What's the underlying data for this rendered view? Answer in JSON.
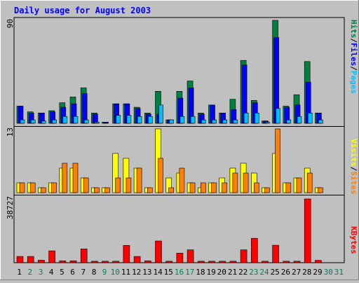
{
  "title": "Daily usage for August 2003",
  "colors": {
    "hits": "#008040",
    "files": "#0000ff",
    "pages": "#00c0ff",
    "visits": "#ffff00",
    "sites": "#ff8000",
    "kbytes": "#ff0000",
    "title": "#0000ff",
    "weekend_label": "#00805c",
    "weekday_label": "#000000",
    "background": "#c0c0c0"
  },
  "chart_data": [
    {
      "type": "bar",
      "name": "hits-files-pages",
      "ymax_label": "90",
      "ylim": [
        0,
        90
      ],
      "legend": [
        "Pages",
        "/",
        "Files",
        "/",
        "Hits"
      ],
      "categories": [
        "1",
        "2",
        "3",
        "4",
        "5",
        "6",
        "7",
        "8",
        "9",
        "10",
        "11",
        "12",
        "13",
        "14",
        "15",
        "16",
        "17",
        "18",
        "19",
        "20",
        "21",
        "22",
        "23",
        "24",
        "25",
        "26",
        "27",
        "28",
        "29",
        "30",
        "31"
      ],
      "series": [
        {
          "name": "Hits",
          "values": [
            15,
            10,
            9,
            11,
            18,
            23,
            31,
            9,
            1,
            17,
            17,
            14,
            9,
            28,
            3,
            28,
            37,
            9,
            16,
            9,
            21,
            55,
            20,
            2,
            90,
            15,
            25,
            54,
            9,
            0,
            0
          ]
        },
        {
          "name": "Files",
          "values": [
            15,
            9,
            9,
            10,
            14,
            17,
            26,
            8,
            1,
            17,
            17,
            13,
            8,
            8,
            3,
            22,
            31,
            8,
            16,
            9,
            12,
            51,
            18,
            2,
            75,
            14,
            16,
            36,
            9,
            0,
            0
          ]
        },
        {
          "name": "Pages",
          "values": [
            3,
            3,
            2,
            3,
            6,
            6,
            3,
            1,
            0,
            7,
            7,
            6,
            6,
            16,
            3,
            6,
            6,
            3,
            3,
            3,
            3,
            9,
            9,
            1,
            13,
            3,
            6,
            9,
            3,
            0,
            0
          ]
        }
      ]
    },
    {
      "type": "bar",
      "name": "visits-sites",
      "ymax_label": "13",
      "ylim": [
        0,
        13
      ],
      "legend": [
        "Sites",
        "/",
        "Visits"
      ],
      "categories": [
        "1",
        "2",
        "3",
        "4",
        "5",
        "6",
        "7",
        "8",
        "9",
        "10",
        "11",
        "12",
        "13",
        "14",
        "15",
        "16",
        "17",
        "18",
        "19",
        "20",
        "21",
        "22",
        "23",
        "24",
        "25",
        "26",
        "27",
        "28",
        "29",
        "30",
        "31"
      ],
      "series": [
        {
          "name": "Visits",
          "values": [
            2,
            2,
            1,
            2,
            5,
            5,
            3,
            1,
            1,
            8,
            7,
            5,
            1,
            13,
            3,
            4,
            2,
            1,
            2,
            3,
            5,
            6,
            4,
            1,
            8,
            2,
            3,
            5,
            1,
            0,
            0
          ]
        },
        {
          "name": "Sites",
          "values": [
            2,
            2,
            1,
            2,
            6,
            6,
            3,
            1,
            1,
            3,
            3,
            5,
            1,
            7,
            1,
            5,
            2,
            2,
            2,
            2,
            4,
            4,
            2,
            1,
            13,
            2,
            3,
            4,
            1,
            0,
            0
          ]
        }
      ]
    },
    {
      "type": "bar",
      "name": "kbytes",
      "ymax_label": "38727",
      "ylim": [
        0,
        38727
      ],
      "legend": [
        "KBytes"
      ],
      "categories": [
        "1",
        "2",
        "3",
        "4",
        "5",
        "6",
        "7",
        "8",
        "9",
        "10",
        "11",
        "12",
        "13",
        "14",
        "15",
        "16",
        "17",
        "18",
        "19",
        "20",
        "21",
        "22",
        "23",
        "24",
        "25",
        "26",
        "27",
        "28",
        "29",
        "30",
        "31"
      ],
      "series": [
        {
          "name": "KBytes",
          "values": [
            3800,
            3800,
            1500,
            7200,
            1100,
            1100,
            8400,
            900,
            900,
            900,
            10500,
            3800,
            1100,
            13200,
            900,
            5800,
            7800,
            900,
            900,
            900,
            900,
            7800,
            14800,
            900,
            10600,
            900,
            900,
            38727,
            1400,
            0,
            0
          ]
        }
      ]
    }
  ],
  "weekend_days": [
    "2",
    "3",
    "9",
    "10",
    "16",
    "17",
    "23",
    "24",
    "30",
    "31"
  ]
}
